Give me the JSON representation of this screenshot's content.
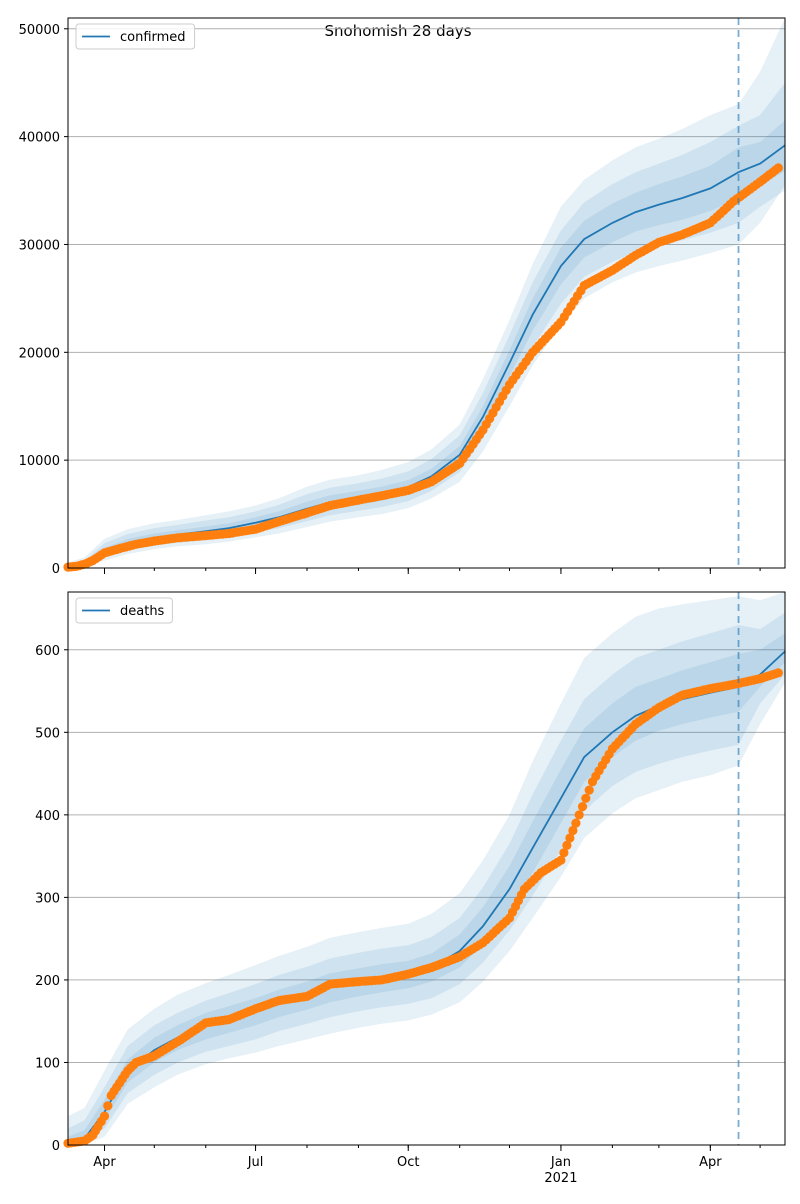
{
  "figure": {
    "title": "Snohomish 28 days"
  },
  "colors": {
    "model_line": "#1f77b4",
    "band": "#1f77b4",
    "observed": "#ff7f0e",
    "forecast_marker": "#1f77b4",
    "grid": "#b0b0b0",
    "axes": "#000000"
  },
  "chart_data": [
    {
      "type": "line",
      "name": "confirmed",
      "legend_position": "top-left",
      "grid": "horizontal",
      "ylim": [
        0,
        51000
      ],
      "yticks": [
        0,
        10000,
        20000,
        30000,
        40000,
        50000
      ],
      "xlim": [
        "2020-03-10",
        "2021-05-16"
      ],
      "xticks": [
        {
          "date": "2020-04-01",
          "label": "Apr"
        },
        {
          "date": "2020-07-01",
          "label": "Jul"
        },
        {
          "date": "2020-10-01",
          "label": "Oct"
        },
        {
          "date": "2021-01-01",
          "label": "Jan",
          "sublabel": "2021"
        },
        {
          "date": "2021-04-01",
          "label": "Apr"
        }
      ],
      "forecast_start": "2021-04-18",
      "series": [
        {
          "name": "confirmed",
          "kind": "model",
          "x": [
            "2020-03-10",
            "2020-03-20",
            "2020-04-01",
            "2020-04-15",
            "2020-05-01",
            "2020-05-15",
            "2020-06-01",
            "2020-06-15",
            "2020-07-01",
            "2020-07-15",
            "2020-08-01",
            "2020-08-15",
            "2020-09-01",
            "2020-09-15",
            "2020-10-01",
            "2020-10-15",
            "2020-11-01",
            "2020-11-15",
            "2020-12-01",
            "2020-12-15",
            "2021-01-01",
            "2021-01-15",
            "2021-02-01",
            "2021-02-15",
            "2021-03-01",
            "2021-03-15",
            "2021-04-01",
            "2021-04-18",
            "2021-05-01",
            "2021-05-16"
          ],
          "y": [
            100,
            300,
            1500,
            2300,
            2800,
            3100,
            3400,
            3700,
            4200,
            4700,
            5500,
            6100,
            6500,
            6900,
            7500,
            8500,
            10500,
            14000,
            19000,
            23500,
            28000,
            30500,
            32000,
            33000,
            33700,
            34300,
            35200,
            36700,
            37500,
            39200
          ],
          "band_50": [
            [
              50,
              200,
              1200,
              1950,
              2420,
              2700,
              2950,
              3250,
              3700,
              4150,
              4850,
              5450,
              5850,
              6250,
              6850,
              7800,
              9700,
              13000,
              17800,
              22000,
              26300,
              28800,
              30200,
              31200,
              31800,
              32300,
              33100,
              34300,
              35500,
              36800
            ],
            [
              200,
              450,
              1850,
              2700,
              3200,
              3500,
              3850,
              4150,
              4700,
              5250,
              6150,
              6750,
              7150,
              7550,
              8150,
              9200,
              11300,
              15000,
              20200,
              25000,
              29700,
              32200,
              33800,
              34800,
              35600,
              36300,
              37300,
              39000,
              39500,
              41500
            ]
          ],
          "band_80": [
            [
              20,
              120,
              950,
              1650,
              2100,
              2350,
              2600,
              2850,
              3300,
              3700,
              4350,
              4900,
              5300,
              5650,
              6200,
              7150,
              8900,
              12000,
              16500,
              20500,
              24500,
              27000,
              28400,
              29300,
              29900,
              30400,
              31100,
              32000,
              33500,
              35000
            ],
            [
              350,
              700,
              2300,
              3150,
              3700,
              4000,
              4400,
              4700,
              5250,
              5850,
              6850,
              7450,
              7850,
              8300,
              8950,
              10100,
              12300,
              16200,
              21600,
              26500,
              31300,
              33900,
              35600,
              36700,
              37500,
              38300,
              39500,
              41000,
              42000,
              45000
            ]
          ],
          "band_95": [
            [
              0,
              50,
              700,
              1300,
              1750,
              2000,
              2200,
              2450,
              2850,
              3200,
              3800,
              4300,
              4700,
              5000,
              5550,
              6450,
              8000,
              10800,
              15000,
              18800,
              22500,
              25000,
              26500,
              27400,
              28000,
              28500,
              29200,
              30000,
              32000,
              35500
            ],
            [
              500,
              1000,
              2700,
              3600,
              4150,
              4450,
              4900,
              5250,
              5800,
              6450,
              7550,
              8200,
              8600,
              9100,
              9800,
              11000,
              13300,
              17500,
              23000,
              28200,
              33500,
              36000,
              37800,
              39000,
              39800,
              40700,
              42000,
              43000,
              46000,
              51000
            ]
          ]
        },
        {
          "name": "",
          "kind": "observed",
          "x": [
            "2020-03-10",
            "2020-03-15",
            "2020-03-20",
            "2020-03-25",
            "2020-04-01",
            "2020-04-10",
            "2020-04-20",
            "2020-05-01",
            "2020-05-15",
            "2020-06-01",
            "2020-06-15",
            "2020-07-01",
            "2020-07-15",
            "2020-08-01",
            "2020-08-15",
            "2020-09-01",
            "2020-09-15",
            "2020-10-01",
            "2020-10-15",
            "2020-11-01",
            "2020-11-15",
            "2020-12-01",
            "2020-12-15",
            "2021-01-01",
            "2021-01-15",
            "2021-02-01",
            "2021-02-15",
            "2021-03-01",
            "2021-03-15",
            "2021-04-01",
            "2021-04-15",
            "2021-05-01",
            "2021-05-12"
          ],
          "y": [
            80,
            150,
            350,
            700,
            1400,
            1800,
            2200,
            2500,
            2800,
            3000,
            3200,
            3600,
            4300,
            5100,
            5800,
            6300,
            6700,
            7200,
            8000,
            9700,
            12800,
            17000,
            20000,
            22800,
            26200,
            27600,
            29000,
            30200,
            30900,
            32000,
            34000,
            35800,
            37100
          ]
        }
      ]
    },
    {
      "type": "line",
      "name": "deaths",
      "legend_position": "top-left",
      "grid": "horizontal",
      "ylim": [
        0,
        670
      ],
      "yticks": [
        0,
        100,
        200,
        300,
        400,
        500,
        600
      ],
      "xlim": [
        "2020-03-10",
        "2021-05-16"
      ],
      "xticks": [
        {
          "date": "2020-04-01",
          "label": "Apr"
        },
        {
          "date": "2020-07-01",
          "label": "Jul"
        },
        {
          "date": "2020-10-01",
          "label": "Oct"
        },
        {
          "date": "2021-01-01",
          "label": "Jan",
          "sublabel": "2021"
        },
        {
          "date": "2021-04-01",
          "label": "Apr"
        }
      ],
      "forecast_start": "2021-04-18",
      "series": [
        {
          "name": "deaths",
          "kind": "model",
          "x": [
            "2020-03-10",
            "2020-03-20",
            "2020-04-01",
            "2020-04-15",
            "2020-05-01",
            "2020-05-15",
            "2020-06-01",
            "2020-06-15",
            "2020-07-01",
            "2020-07-15",
            "2020-08-01",
            "2020-08-15",
            "2020-09-01",
            "2020-09-15",
            "2020-10-01",
            "2020-10-15",
            "2020-11-01",
            "2020-11-15",
            "2020-12-01",
            "2020-12-15",
            "2021-01-01",
            "2021-01-15",
            "2021-02-01",
            "2021-02-15",
            "2021-03-01",
            "2021-03-15",
            "2021-04-01",
            "2021-04-18",
            "2021-05-01",
            "2021-05-16"
          ],
          "y": [
            2,
            8,
            40,
            90,
            115,
            130,
            145,
            152,
            162,
            172,
            182,
            191,
            198,
            202,
            206,
            215,
            235,
            265,
            310,
            360,
            420,
            470,
            500,
            520,
            532,
            540,
            548,
            555,
            570,
            598
          ],
          "band_50": [
            [
              0,
              4,
              30,
              76,
              100,
              115,
              128,
              136,
              145,
              155,
              164,
              173,
              180,
              185,
              190,
              198,
              215,
              243,
              285,
              330,
              390,
              440,
              470,
              490,
              502,
              510,
              518,
              525,
              555,
              585
            ],
            [
              10,
              18,
              55,
              104,
              130,
              145,
              160,
              168,
              178,
              188,
              198,
              208,
              214,
              219,
              223,
              232,
              255,
              288,
              338,
              392,
              455,
              505,
              535,
              555,
              565,
              575,
              585,
              595,
              600,
              620
            ]
          ],
          "band_80": [
            [
              0,
              2,
              20,
              63,
              85,
              100,
              113,
              120,
              128,
              138,
              147,
              155,
              162,
              167,
              171,
              178,
              195,
              221,
              260,
              302,
              357,
              405,
              435,
              452,
              462,
              470,
              478,
              485,
              535,
              570
            ],
            [
              20,
              30,
              70,
              120,
              145,
              160,
              175,
              184,
              195,
              206,
              216,
              226,
              233,
              238,
              242,
              252,
              275,
              312,
              365,
              425,
              490,
              540,
              570,
              590,
              600,
              610,
              620,
              630,
              625,
              645
            ]
          ],
          "band_95": [
            [
              0,
              0,
              10,
              50,
              70,
              85,
              98,
              105,
              112,
              120,
              128,
              135,
              142,
              147,
              151,
              158,
              173,
              198,
              235,
              275,
              325,
              372,
              402,
              420,
              430,
              440,
              448,
              460,
              510,
              560
            ],
            [
              35,
              45,
              90,
              140,
              165,
              182,
              196,
              206,
              218,
              229,
              240,
              251,
              258,
              263,
              268,
              280,
              305,
              345,
              400,
              465,
              535,
              590,
              620,
              640,
              650,
              655,
              660,
              665,
              660,
              670
            ]
          ]
        },
        {
          "name": "",
          "kind": "observed",
          "x": [
            "2020-03-10",
            "2020-03-20",
            "2020-03-25",
            "2020-03-28",
            "2020-04-01",
            "2020-04-05",
            "2020-04-10",
            "2020-04-15",
            "2020-04-20",
            "2020-05-01",
            "2020-05-15",
            "2020-06-01",
            "2020-06-15",
            "2020-07-01",
            "2020-07-15",
            "2020-08-01",
            "2020-08-15",
            "2020-09-01",
            "2020-09-15",
            "2020-10-01",
            "2020-10-15",
            "2020-11-01",
            "2020-11-15",
            "2020-12-01",
            "2020-12-10",
            "2020-12-20",
            "2021-01-01",
            "2021-01-10",
            "2021-01-20",
            "2021-02-01",
            "2021-02-15",
            "2021-03-01",
            "2021-03-15",
            "2021-04-01",
            "2021-04-15",
            "2021-05-01",
            "2021-05-12"
          ],
          "y": [
            2,
            5,
            12,
            22,
            35,
            60,
            75,
            90,
            100,
            108,
            125,
            148,
            152,
            165,
            175,
            180,
            195,
            198,
            200,
            207,
            215,
            228,
            245,
            275,
            310,
            330,
            345,
            390,
            440,
            480,
            510,
            530,
            545,
            553,
            558,
            565,
            572
          ]
        }
      ]
    }
  ]
}
